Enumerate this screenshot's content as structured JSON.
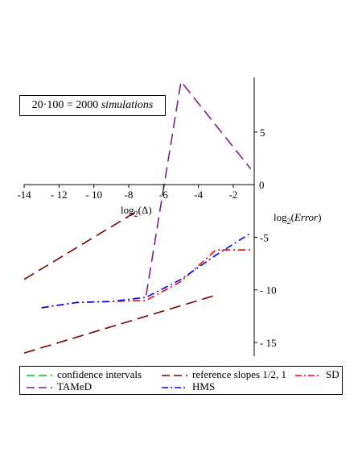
{
  "chart_data": {
    "type": "line",
    "annotation": "20·100 = 2000",
    "annotation_suffix": "simulations",
    "x_axis": {
      "label_base": "log",
      "label_sub": "2",
      "label_arg": "(Δ)",
      "ticks": [
        -14,
        -12,
        -10,
        -8,
        -6,
        -4,
        -2
      ],
      "tick_labels": [
        "-14",
        "- 12",
        "- 10",
        "-8",
        "-6",
        "-4",
        "-2"
      ],
      "range": [
        -14,
        -0.8
      ]
    },
    "y_axis": {
      "label_base": "log",
      "label_sub": "2",
      "label_arg": "Error",
      "ticks": [
        5,
        0,
        -5,
        -10,
        -15
      ],
      "tick_labels": [
        "5",
        "0",
        "-5",
        "- 10",
        "- 15"
      ],
      "range": [
        -16.3,
        10.2
      ]
    },
    "series": [
      {
        "name": "confidence intervals",
        "color": "#00cc00",
        "dash": "long-dash",
        "x": [],
        "y": []
      },
      {
        "name": "reference slopes 1/2, 1",
        "color": "#7a0000",
        "dash": "long-dash",
        "segments": [
          {
            "x": [
              -14,
              -7.5
            ],
            "y": [
              -9.0,
              -2.5
            ]
          },
          {
            "x": [
              -14,
              -3
            ],
            "y": [
              -16.0,
              -10.5
            ]
          }
        ]
      },
      {
        "name": "SD",
        "color": "#ff0000",
        "dash": "dash-dot",
        "x": [
          -13,
          -11,
          -9,
          -7,
          -5,
          -3,
          -1
        ],
        "y": [
          -11.7,
          -11.2,
          -11.1,
          -11.0,
          -9.2,
          -6.2,
          -6.2
        ]
      },
      {
        "name": "TAMeD",
        "color": "#7a1f8a",
        "dash": "long-dash",
        "x": [
          -7,
          -5,
          -1
        ],
        "y": [
          -10.5,
          9.8,
          1.5
        ]
      },
      {
        "name": "HMS",
        "color": "#0000ff",
        "dash": "dash-dot",
        "x": [
          -13,
          -11,
          -9,
          -7,
          -5,
          -3,
          -1
        ],
        "y": [
          -11.7,
          -11.2,
          -11.1,
          -10.7,
          -9.0,
          -6.7,
          -4.6
        ]
      }
    ],
    "legend_position": "bottom",
    "grid": false
  }
}
